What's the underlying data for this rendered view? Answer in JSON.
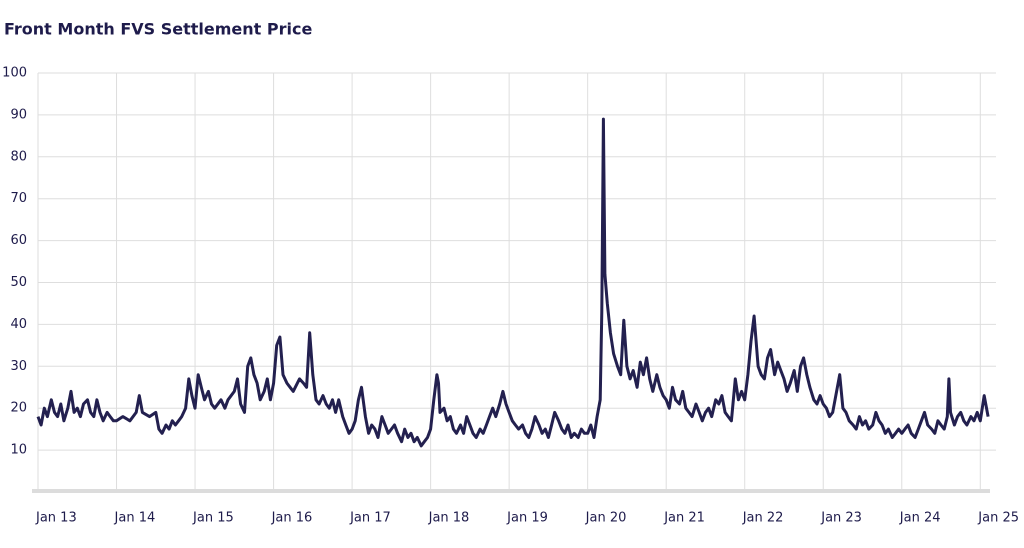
{
  "chart_data": {
    "type": "line",
    "title": "Front Month FVS Settlement Price",
    "x": [
      2013,
      2013.04,
      2013.08,
      2013.12,
      2013.17,
      2013.21,
      2013.25,
      2013.29,
      2013.33,
      2013.38,
      2013.42,
      2013.46,
      2013.5,
      2013.54,
      2013.58,
      2013.63,
      2013.67,
      2013.71,
      2013.75,
      2013.79,
      2013.83,
      2013.88,
      2013.92,
      2013.96,
      2014,
      2014.08,
      2014.17,
      2014.25,
      2014.29,
      2014.33,
      2014.42,
      2014.5,
      2014.54,
      2014.58,
      2014.63,
      2014.67,
      2014.71,
      2014.75,
      2014.79,
      2014.83,
      2014.88,
      2014.92,
      2014.96,
      2015,
      2015.04,
      2015.08,
      2015.12,
      2015.17,
      2015.21,
      2015.25,
      2015.33,
      2015.38,
      2015.42,
      2015.5,
      2015.54,
      2015.58,
      2015.63,
      2015.67,
      2015.71,
      2015.75,
      2015.79,
      2015.83,
      2015.88,
      2015.92,
      2015.96,
      2016,
      2016.04,
      2016.08,
      2016.12,
      2016.17,
      2016.21,
      2016.25,
      2016.33,
      2016.38,
      2016.42,
      2016.46,
      2016.5,
      2016.54,
      2016.58,
      2016.63,
      2016.67,
      2016.71,
      2016.75,
      2016.79,
      2016.83,
      2016.88,
      2016.92,
      2016.96,
      2017,
      2017.04,
      2017.08,
      2017.12,
      2017.17,
      2017.21,
      2017.25,
      2017.29,
      2017.33,
      2017.38,
      2017.42,
      2017.46,
      2017.5,
      2017.54,
      2017.58,
      2017.63,
      2017.67,
      2017.71,
      2017.75,
      2017.79,
      2017.83,
      2017.88,
      2017.92,
      2017.96,
      2018,
      2018.04,
      2018.08,
      2018.1,
      2018.12,
      2018.17,
      2018.21,
      2018.25,
      2018.29,
      2018.33,
      2018.38,
      2018.42,
      2018.46,
      2018.5,
      2018.54,
      2018.58,
      2018.63,
      2018.67,
      2018.71,
      2018.75,
      2018.79,
      2018.83,
      2018.88,
      2018.92,
      2018.96,
      2019,
      2019.04,
      2019.08,
      2019.12,
      2019.17,
      2019.21,
      2019.25,
      2019.29,
      2019.33,
      2019.38,
      2019.42,
      2019.46,
      2019.5,
      2019.54,
      2019.58,
      2019.63,
      2019.67,
      2019.71,
      2019.75,
      2019.79,
      2019.83,
      2019.88,
      2019.92,
      2019.96,
      2020,
      2020.04,
      2020.08,
      2020.12,
      2020.16,
      2020.18,
      2020.2,
      2020.22,
      2020.25,
      2020.29,
      2020.33,
      2020.38,
      2020.42,
      2020.46,
      2020.5,
      2020.54,
      2020.58,
      2020.63,
      2020.67,
      2020.71,
      2020.75,
      2020.79,
      2020.83,
      2020.88,
      2020.92,
      2020.96,
      2021,
      2021.04,
      2021.08,
      2021.12,
      2021.17,
      2021.21,
      2021.25,
      2021.29,
      2021.33,
      2021.38,
      2021.42,
      2021.46,
      2021.5,
      2021.54,
      2021.58,
      2021.63,
      2021.67,
      2021.71,
      2021.75,
      2021.79,
      2021.83,
      2021.88,
      2021.92,
      2021.96,
      2022,
      2022.04,
      2022.08,
      2022.12,
      2022.17,
      2022.21,
      2022.25,
      2022.29,
      2022.33,
      2022.38,
      2022.42,
      2022.46,
      2022.5,
      2022.54,
      2022.58,
      2022.63,
      2022.67,
      2022.71,
      2022.75,
      2022.79,
      2022.83,
      2022.88,
      2022.92,
      2022.96,
      2023,
      2023.04,
      2023.08,
      2023.12,
      2023.17,
      2023.21,
      2023.25,
      2023.29,
      2023.33,
      2023.38,
      2023.42,
      2023.46,
      2023.5,
      2023.54,
      2023.58,
      2023.63,
      2023.67,
      2023.71,
      2023.75,
      2023.79,
      2023.83,
      2023.88,
      2023.92,
      2023.96,
      2024,
      2024.04,
      2024.08,
      2024.12,
      2024.17,
      2024.21,
      2024.25,
      2024.29,
      2024.33,
      2024.38,
      2024.42,
      2024.46,
      2024.5,
      2024.54,
      2024.58,
      2024.6,
      2024.62,
      2024.67,
      2024.71,
      2024.75,
      2024.79,
      2024.83,
      2024.88,
      2024.92,
      2024.96,
      2025,
      2025.05,
      2025.1
    ],
    "series": [
      {
        "color": "#23204f",
        "values": [
          18,
          16,
          20,
          18,
          22,
          19,
          18,
          21,
          17,
          20,
          24,
          19,
          20,
          18,
          21,
          22,
          19,
          18,
          22,
          19,
          17,
          19,
          18,
          17,
          17,
          18,
          17,
          19,
          23,
          19,
          18,
          19,
          15,
          14,
          16,
          15,
          17,
          16,
          17,
          18,
          20,
          27,
          23,
          20,
          28,
          25,
          22,
          24,
          21,
          20,
          22,
          20,
          22,
          24,
          27,
          21,
          19,
          30,
          32,
          28,
          26,
          22,
          24,
          27,
          22,
          26,
          35,
          37,
          28,
          26,
          25,
          24,
          27,
          26,
          25,
          38,
          28,
          22,
          21,
          23,
          21,
          20,
          22,
          19,
          22,
          18,
          16,
          14,
          15,
          17,
          22,
          25,
          18,
          14,
          16,
          15,
          13,
          18,
          16,
          14,
          15,
          16,
          14,
          12,
          15,
          13,
          14,
          12,
          13,
          11,
          12,
          13,
          15,
          22,
          28,
          26,
          19,
          20,
          17,
          18,
          15,
          14,
          16,
          14,
          18,
          16,
          14,
          13,
          15,
          14,
          16,
          18,
          20,
          18,
          21,
          24,
          21,
          19,
          17,
          16,
          15,
          16,
          14,
          13,
          15,
          18,
          16,
          14,
          15,
          13,
          16,
          19,
          17,
          15,
          14,
          16,
          13,
          14,
          13,
          15,
          14,
          14,
          16,
          13,
          18,
          22,
          43,
          89,
          52,
          45,
          38,
          33,
          30,
          28,
          41,
          30,
          27,
          29,
          25,
          31,
          28,
          32,
          27,
          24,
          28,
          25,
          23,
          22,
          20,
          25,
          22,
          21,
          24,
          20,
          19,
          18,
          21,
          19,
          17,
          19,
          20,
          18,
          22,
          21,
          23,
          19,
          18,
          17,
          27,
          22,
          24,
          22,
          28,
          36,
          42,
          30,
          28,
          27,
          32,
          34,
          28,
          31,
          29,
          27,
          24,
          26,
          29,
          24,
          30,
          32,
          28,
          25,
          22,
          21,
          23,
          21,
          20,
          18,
          19,
          24,
          28,
          20,
          19,
          17,
          16,
          15,
          18,
          16,
          17,
          15,
          16,
          19,
          17,
          16,
          14,
          15,
          13,
          14,
          15,
          14,
          15,
          16,
          14,
          13,
          15,
          17,
          19,
          16,
          15,
          14,
          17,
          16,
          15,
          18,
          27,
          19,
          16,
          18,
          19,
          17,
          16,
          18,
          17,
          19,
          17,
          23,
          18
        ]
      }
    ],
    "xlim": [
      2013,
      2025.2
    ],
    "xticks": [
      {
        "value": 2013,
        "label": "Jan 13"
      },
      {
        "value": 2014,
        "label": "Jan 14"
      },
      {
        "value": 2015,
        "label": "Jan 15"
      },
      {
        "value": 2016,
        "label": "Jan 16"
      },
      {
        "value": 2017,
        "label": "Jan 17"
      },
      {
        "value": 2018,
        "label": "Jan 18"
      },
      {
        "value": 2019,
        "label": "Jan 19"
      },
      {
        "value": 2020,
        "label": "Jan 20"
      },
      {
        "value": 2021,
        "label": "Jan 21"
      },
      {
        "value": 2022,
        "label": "Jan 22"
      },
      {
        "value": 2023,
        "label": "Jan 23"
      },
      {
        "value": 2024,
        "label": "Jan 24"
      },
      {
        "value": 2025,
        "label": "Jan 25"
      }
    ],
    "ylim": [
      0,
      100
    ],
    "yticks": [
      10,
      20,
      30,
      40,
      50,
      60,
      70,
      80,
      90,
      100
    ],
    "grid": true
  }
}
